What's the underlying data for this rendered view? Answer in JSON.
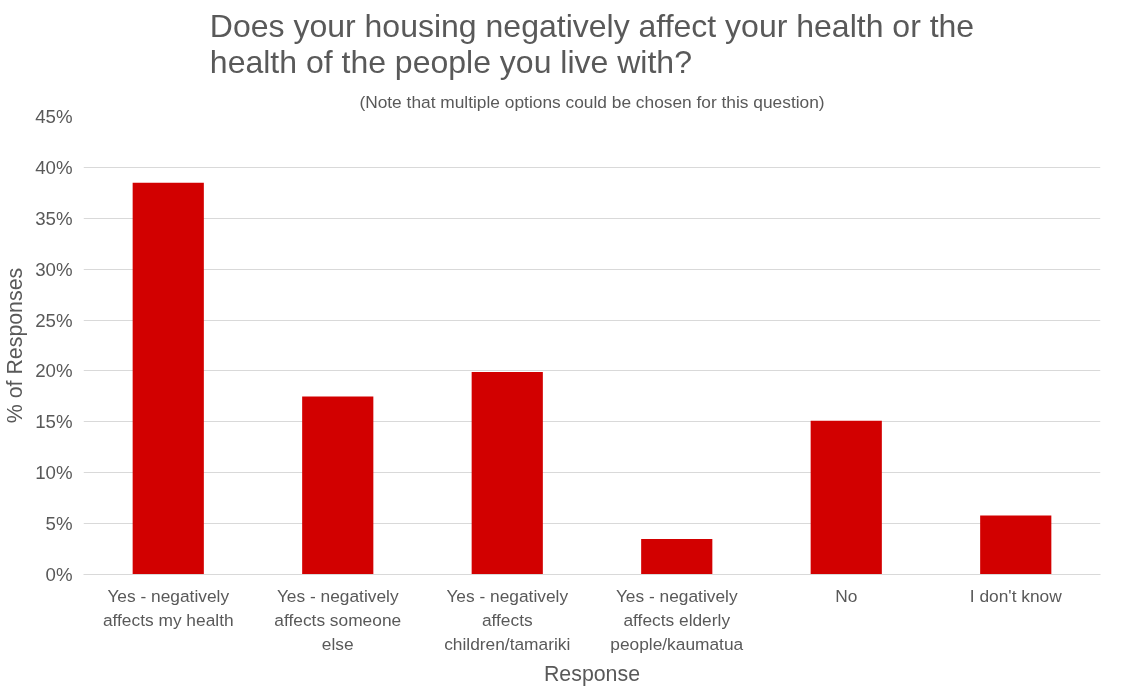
{
  "chart_data": {
    "type": "bar",
    "title": "Does your housing negatively affect your health or the health of the people you live with?",
    "subtitle": "(Note that multiple options could be chosen for this question)",
    "xlabel": "Response",
    "ylabel": "% of Responses",
    "categories": [
      "Yes - negatively affects my health",
      "Yes - negatively affects someone else",
      "Yes - negatively affects children/tamariki",
      "Yes - negatively affects elderly people/kaumatua",
      "No",
      "I don't know"
    ],
    "values": [
      38.5,
      17.5,
      19.9,
      3.5,
      15.1,
      5.8
    ],
    "color": "#d20000",
    "ylim": [
      0,
      45
    ],
    "yticks": [
      {
        "value": 0,
        "label": "0%"
      },
      {
        "value": 5,
        "label": "5%"
      },
      {
        "value": 10,
        "label": "10%"
      },
      {
        "value": 15,
        "label": "15%"
      },
      {
        "value": 20,
        "label": "20%"
      },
      {
        "value": 25,
        "label": "25%"
      },
      {
        "value": 30,
        "label": "30%"
      },
      {
        "value": 35,
        "label": "35%"
      },
      {
        "value": 40,
        "label": "40%"
      },
      {
        "value": 45,
        "label": "45%"
      }
    ],
    "grid": "y"
  }
}
